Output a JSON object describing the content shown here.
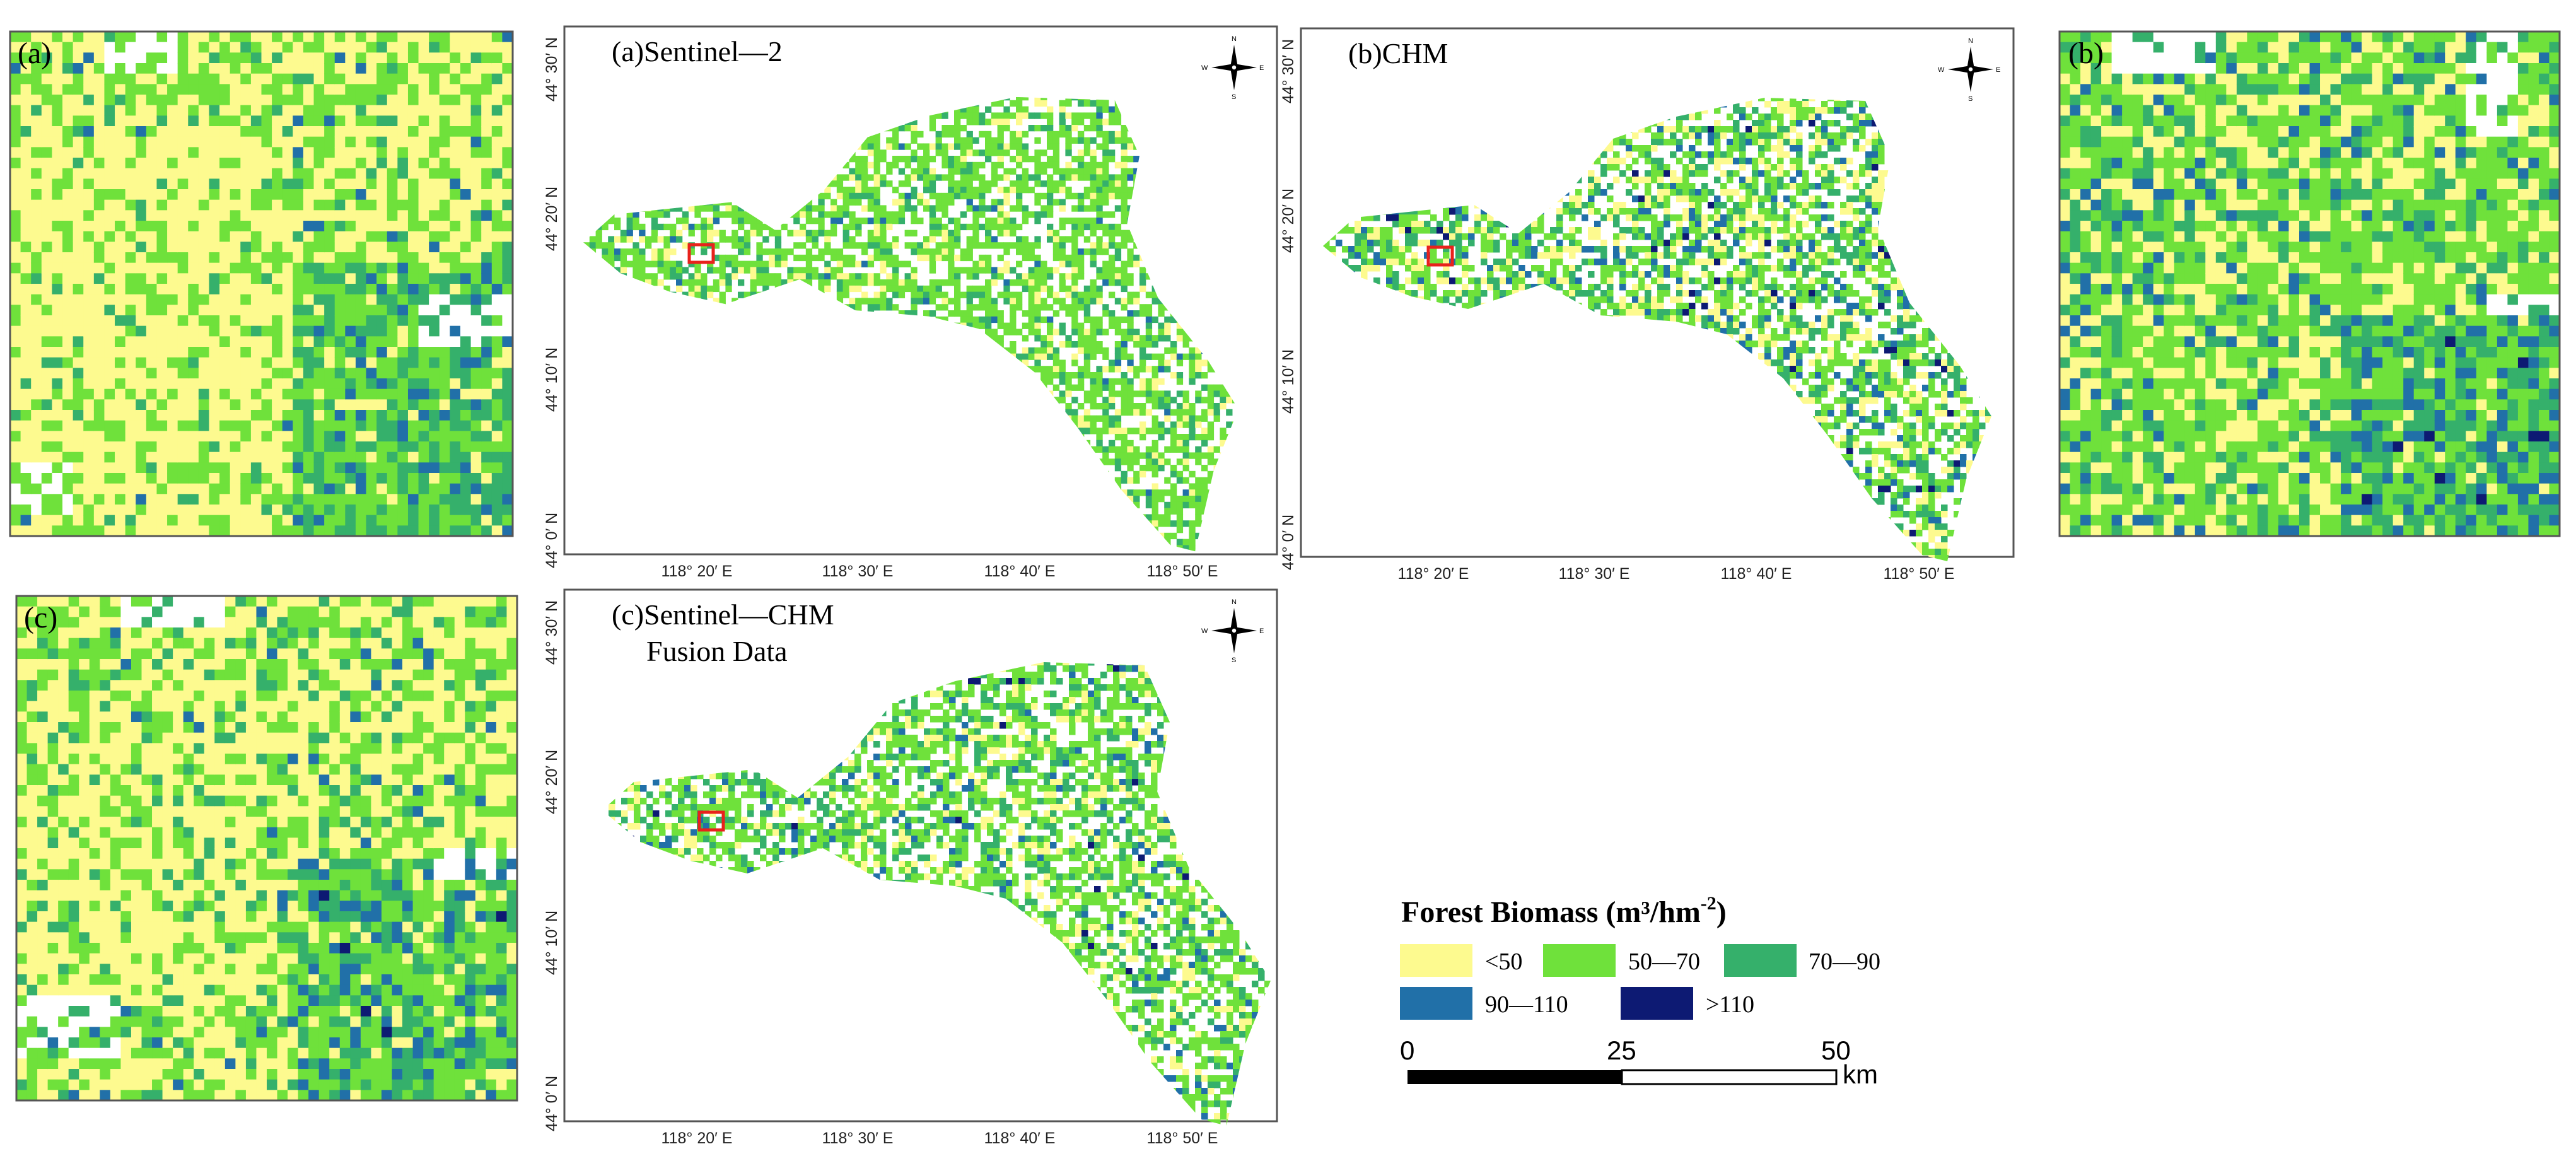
{
  "colors": {
    "class_lt50": "#fdfa8f",
    "class_50_70": "#6fe13b",
    "class_70_90": "#35b06b",
    "class_90_110": "#2170a8",
    "class_gt110": "#0d1a73",
    "highlight": "#e8221c",
    "frame": "#555555"
  },
  "zoom_panels": [
    {
      "label": "(a)"
    },
    {
      "label": "(b)"
    },
    {
      "label": "(c)"
    }
  ],
  "maps": [
    {
      "title_lines": [
        "(a)Sentinel—2"
      ]
    },
    {
      "title_lines": [
        "(b)CHM"
      ]
    },
    {
      "title_lines": [
        "(c)Sentinel—CHM",
        "Fusion Data"
      ]
    }
  ],
  "axes": {
    "lat_labels": [
      "44° 30′ N",
      "44° 20′ N",
      "44° 10′ N",
      "44° 0′ N"
    ],
    "lon_labels": [
      "118° 20′ E",
      "118° 30′ E",
      "118° 40′ E",
      "118° 50′ E"
    ]
  },
  "compass": {
    "n": "N",
    "s": "S",
    "e": "E",
    "w": "W"
  },
  "legend": {
    "title": "Forest Biomass (m³/hm",
    "title_sup": "-2",
    "title_close": ")",
    "classes": [
      {
        "label": "<50",
        "color_key": "class_lt50"
      },
      {
        "label": "50—70",
        "color_key": "class_50_70"
      },
      {
        "label": "70—90",
        "color_key": "class_70_90"
      },
      {
        "label": "90—110",
        "color_key": "class_90_110"
      },
      {
        "label": ">110",
        "color_key": "class_gt110"
      }
    ]
  },
  "scalebar": {
    "ticks": [
      "0",
      "25",
      "50"
    ],
    "unit": "km"
  }
}
